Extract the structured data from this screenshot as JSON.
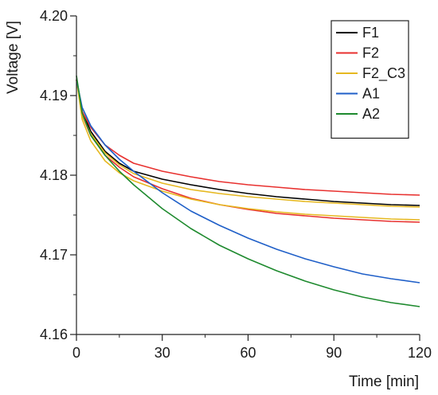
{
  "chart_data": {
    "type": "line",
    "xlabel": "Time [min]",
    "ylabel": "Voltage [V]",
    "xlim": [
      0,
      120
    ],
    "ylim": [
      4.16,
      4.2
    ],
    "xticks": [
      0,
      30,
      60,
      90,
      120
    ],
    "xtick_labels": [
      "0",
      "30",
      "60",
      "90",
      "120"
    ],
    "yticks": [
      4.16,
      4.17,
      4.18,
      4.19,
      4.2
    ],
    "ytick_labels": [
      "4.16",
      "4.17",
      "4.18",
      "4.19",
      "4.20"
    ],
    "grid": false,
    "legend_position": "top-right",
    "x": [
      0,
      2,
      5,
      10,
      15,
      20,
      30,
      40,
      50,
      60,
      70,
      80,
      90,
      100,
      110,
      120
    ],
    "series": [
      {
        "name": "F1",
        "color": "#000000",
        "values": [
          4.192,
          4.188,
          4.1855,
          4.183,
          4.1815,
          4.1805,
          4.1795,
          4.1788,
          4.1782,
          4.1777,
          4.1773,
          4.177,
          4.1767,
          4.1765,
          4.1763,
          4.1762
        ]
      },
      {
        "name": "F2",
        "color": "#e8312f",
        "values": [
          4.192,
          4.188,
          4.186,
          4.1838,
          4.1825,
          4.1815,
          4.1805,
          4.1798,
          4.1792,
          4.1788,
          4.1785,
          4.1782,
          4.178,
          4.1778,
          4.1776,
          4.1775
        ]
      },
      {
        "name": "",
        "color": "#e8312f",
        "values": [
          4.192,
          4.1875,
          4.185,
          4.1825,
          4.181,
          4.1798,
          4.1783,
          4.1771,
          4.1763,
          4.1757,
          4.1752,
          4.1749,
          4.1746,
          4.1744,
          4.1742,
          4.1741
        ]
      },
      {
        "name": "F2_C3",
        "color": "#e6b820",
        "values": [
          4.192,
          4.1875,
          4.1852,
          4.1828,
          4.1813,
          4.1802,
          4.179,
          4.1782,
          4.1777,
          4.1773,
          4.177,
          4.1767,
          4.1765,
          4.1763,
          4.1761,
          4.176
        ]
      },
      {
        "name": "",
        "color": "#e6b820",
        "values": [
          4.192,
          4.187,
          4.1843,
          4.1818,
          4.1803,
          4.1793,
          4.178,
          4.177,
          4.1763,
          4.1758,
          4.1754,
          4.1751,
          4.1749,
          4.1747,
          4.1745,
          4.1744
        ]
      },
      {
        "name": "A1",
        "color": "#1f5fc8",
        "values": [
          4.192,
          4.1885,
          4.1862,
          4.1838,
          4.182,
          4.1805,
          4.1778,
          4.1755,
          4.1737,
          4.1721,
          4.1707,
          4.1695,
          4.1685,
          4.1676,
          4.167,
          4.1665
        ]
      },
      {
        "name": "A2",
        "color": "#1e8a2e",
        "values": [
          4.1925,
          4.1878,
          4.185,
          4.1825,
          4.1805,
          4.1788,
          4.1758,
          4.1733,
          4.1712,
          4.1695,
          4.168,
          4.1667,
          4.1656,
          4.1647,
          4.164,
          4.1635
        ]
      }
    ]
  }
}
